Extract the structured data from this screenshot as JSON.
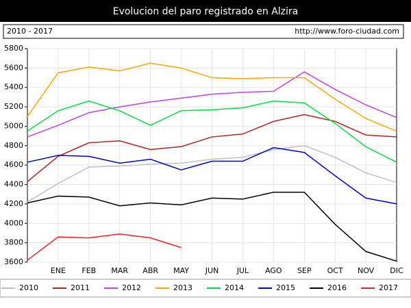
{
  "chart_data": {
    "type": "line",
    "title": "Evolucion del paro registrado en Alzira",
    "subtitle": "2010 - 2017",
    "source": "http://www.foro-ciudad.com",
    "categories": [
      null,
      "ENE",
      "FEB",
      "MAR",
      "ABR",
      "MAY",
      "JUN",
      "JUL",
      "AGO",
      "SEP",
      "OCT",
      "NOV",
      "DIC"
    ],
    "ylim": [
      3600,
      5800
    ],
    "yticks": [
      3600,
      3800,
      4000,
      4200,
      4400,
      4600,
      4800,
      5000,
      5200,
      5400,
      5600,
      5800
    ],
    "grid": true,
    "legend": "bottom",
    "series": [
      {
        "name": "2010",
        "color": "#c0c0c0",
        "values": [
          4220,
          4410,
          4580,
          4590,
          4610,
          4620,
          4660,
          4680,
          4760,
          4800,
          4680,
          4520,
          4420
        ]
      },
      {
        "name": "2011",
        "color": "#b22222",
        "values": [
          4430,
          4690,
          4830,
          4850,
          4760,
          4790,
          4890,
          4920,
          5050,
          5120,
          5050,
          4910,
          4890
        ]
      },
      {
        "name": "2012",
        "color": "#c040e0",
        "values": [
          4890,
          5010,
          5140,
          5200,
          5250,
          5290,
          5330,
          5350,
          5360,
          5560,
          5380,
          5220,
          5090
        ]
      },
      {
        "name": "2013",
        "color": "#ffa500",
        "values": [
          5100,
          5550,
          5610,
          5570,
          5650,
          5600,
          5500,
          5490,
          5500,
          5500,
          5280,
          5080,
          4950
        ]
      },
      {
        "name": "2014",
        "color": "#00e040",
        "values": [
          4950,
          5160,
          5260,
          5160,
          5010,
          5160,
          5170,
          5190,
          5260,
          5240,
          5030,
          4790,
          4630
        ]
      },
      {
        "name": "2015",
        "color": "#0000cc",
        "values": [
          4630,
          4700,
          4690,
          4620,
          4660,
          4550,
          4640,
          4640,
          4780,
          4730,
          4490,
          4260,
          4200
        ]
      },
      {
        "name": "2016",
        "color": "#000000",
        "values": [
          4210,
          4280,
          4270,
          4180,
          4210,
          4190,
          4260,
          4250,
          4320,
          4320,
          3990,
          3710,
          3610
        ]
      },
      {
        "name": "2017",
        "color": "#ee2020",
        "values": [
          3620,
          3860,
          3850,
          3890,
          3850,
          3750,
          null,
          null,
          null,
          null,
          null,
          null,
          null
        ]
      }
    ]
  }
}
